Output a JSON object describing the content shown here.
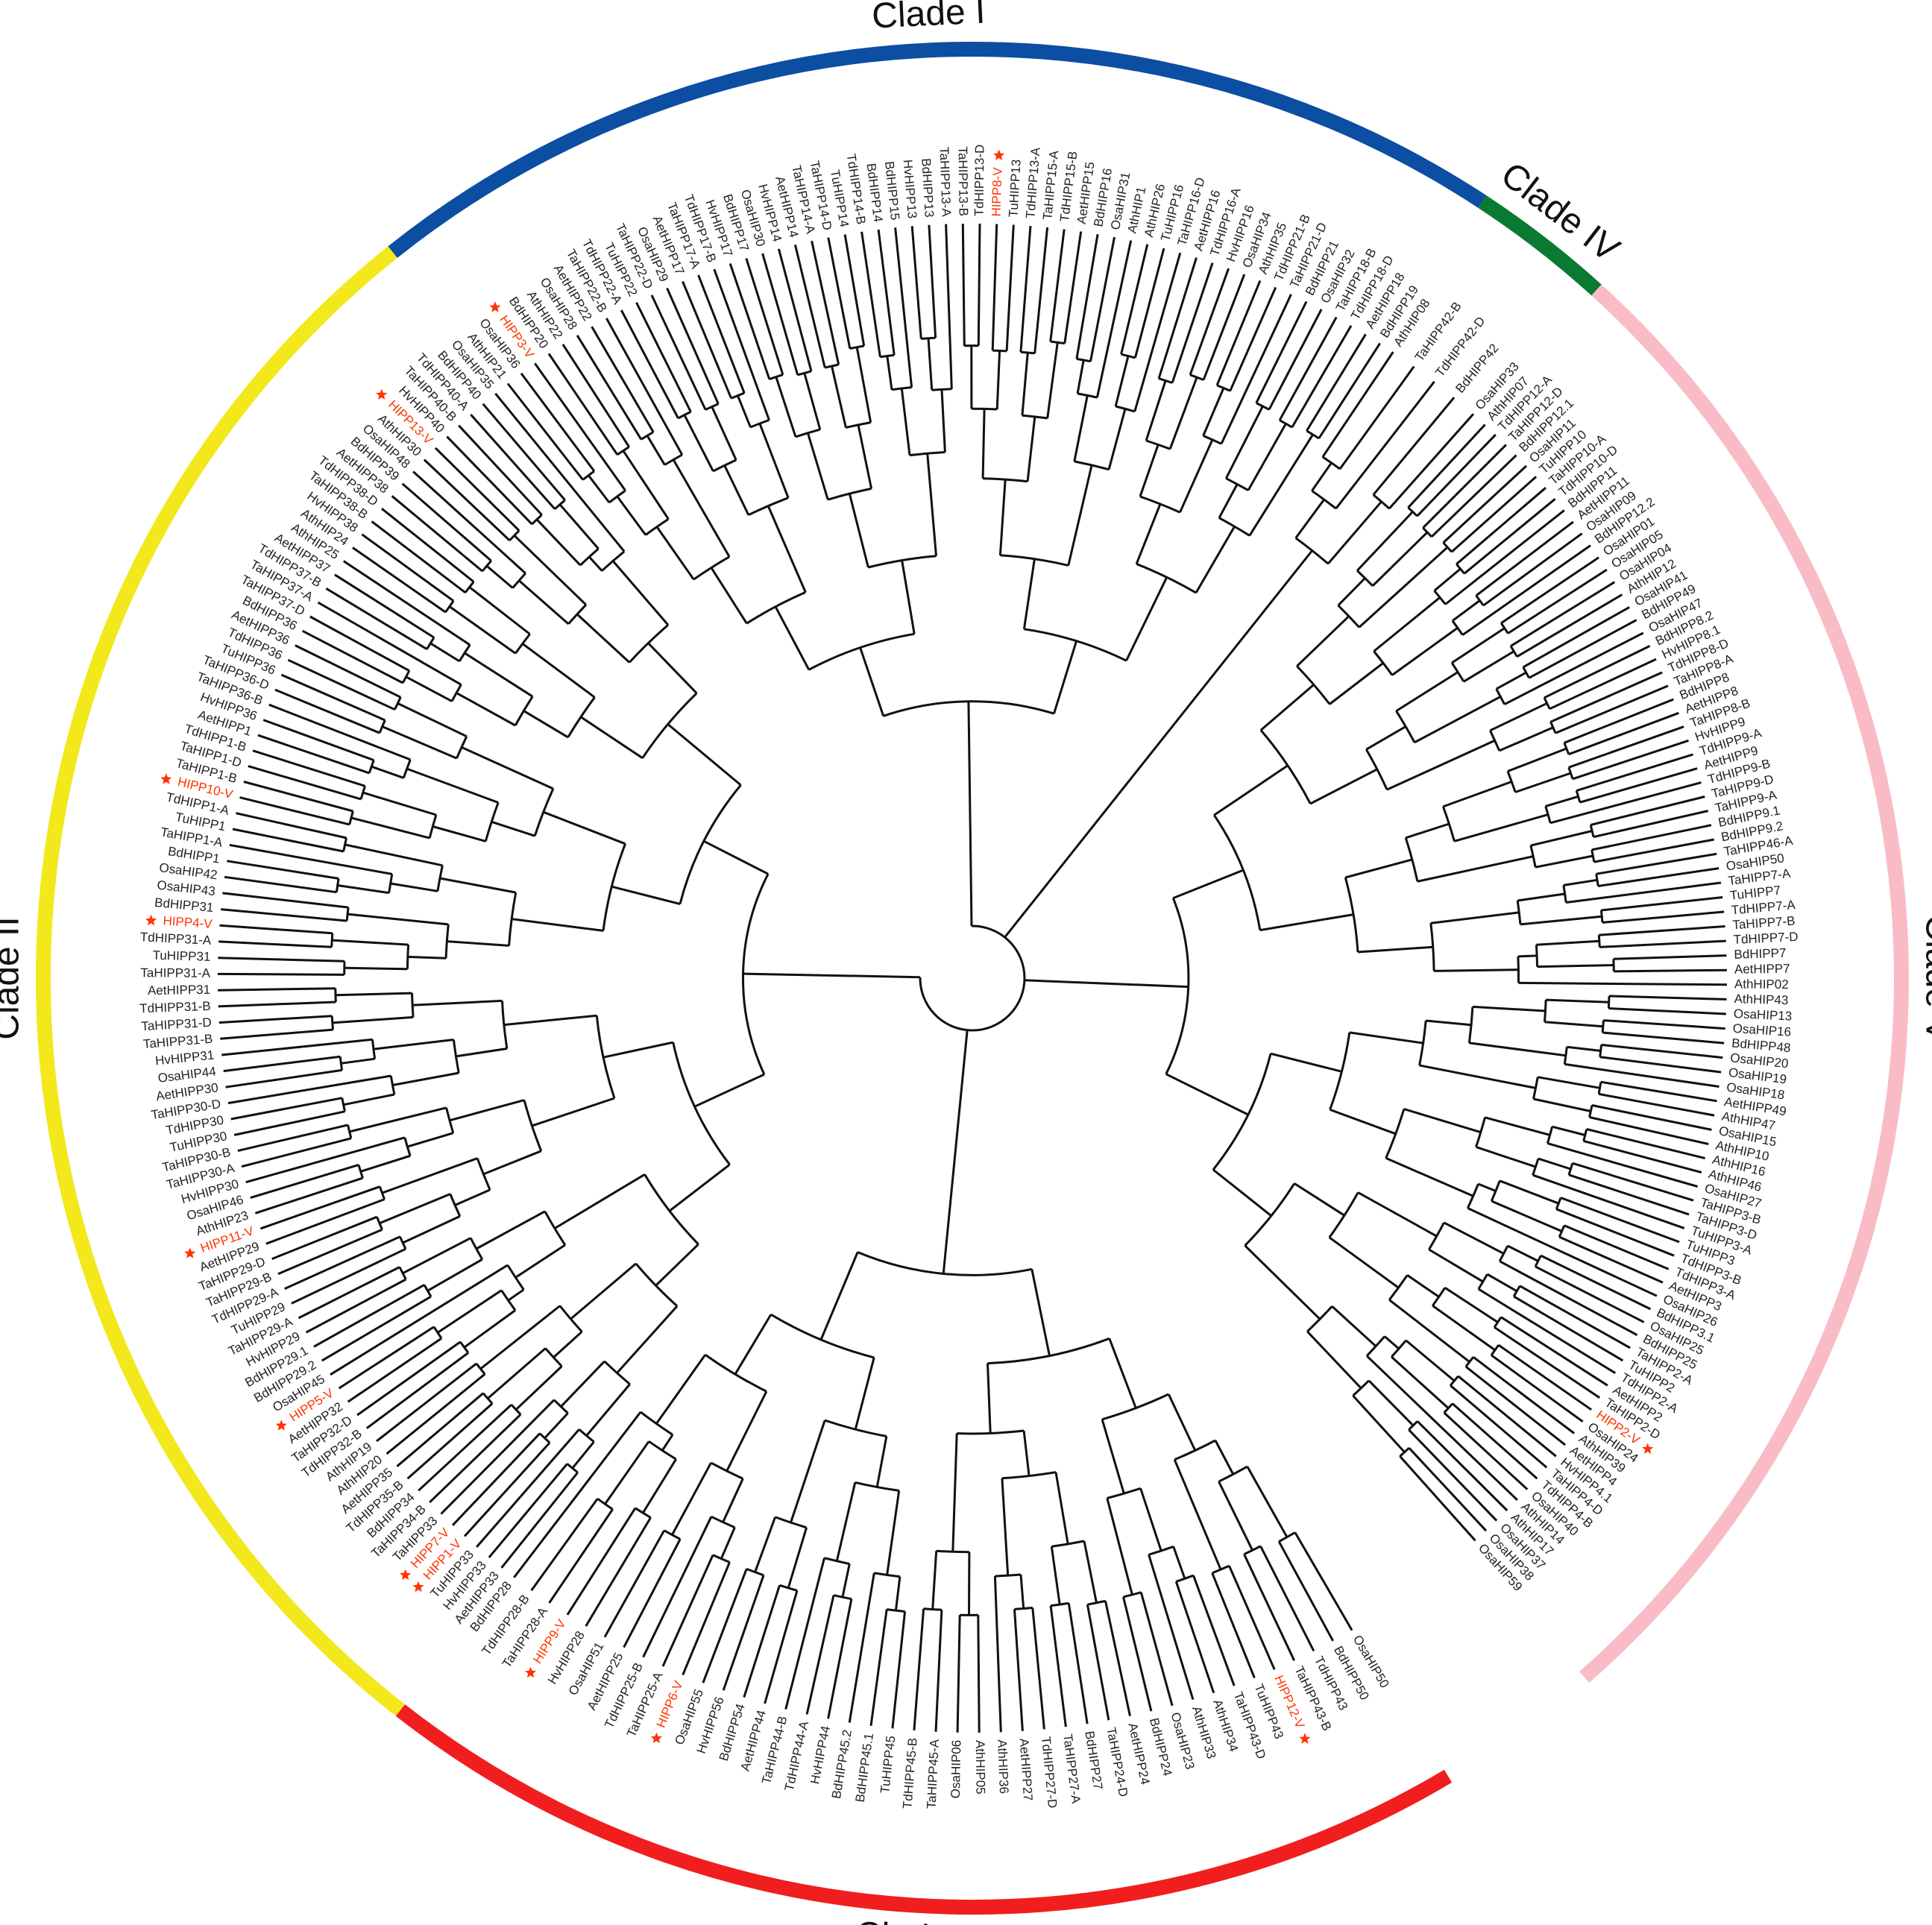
{
  "tree": {
    "clades": [
      {
        "name": "Clade I",
        "color": "#0b4ea2",
        "leaves": [
          "AthHIP21",
          "OsaHIP36",
          {
            "label": "HIPP3-V",
            "color": "#ff3300"
          },
          "BdHIPP20",
          "AthHIP22",
          "OsaHIP28",
          "AetHIPP22",
          "TaHIPP22-B",
          "TdHIPP22-A",
          "TuHIPP22",
          "TaHIPP22-D",
          "OsaHIP29",
          "AetHIPP17",
          "TaHIPP17-A",
          "TdHIPP17-B",
          "HvHIPP17",
          "BdHIPP17",
          "OsaHIP30",
          "HvHIPP14",
          "AetHIPP14",
          "TaHIPP14-A",
          "TaHIPP14-D",
          "TuHIPP14",
          "TdHIPP14-B",
          "BdHIPP14",
          "BdHIPP15",
          "HvHIPP13",
          "BdHIPP13",
          "TaHIPP13-A",
          "TaHIPP13-B",
          "TdHIPP13-D",
          {
            "label": "HIPP8-V",
            "color": "#ff3300"
          },
          "TuHIPP13",
          "TdHIPP13-A",
          "TaHIPP15-A",
          "TdHIPP15-B",
          "AetHIPP15",
          "BdHIPP16",
          "OsaHIP31",
          "AthHIP1",
          "AthHIP26",
          "TuHIPP16",
          "TaHIPP16-D",
          "AetHIPP16",
          "TdHIPP16-A",
          "HvHIPP16",
          "OsaHIP34",
          "AthHIP35",
          "TdHIPP21-B",
          "TaHIPP21-D",
          "BdHIPP21",
          "OsaHIP32",
          "TaHIPP18-B",
          "TdHIPP18-D",
          "AetHIPP18",
          "BdHIPP19"
        ]
      },
      {
        "name": "Clade IV",
        "color": "#0a7a32",
        "leaves": [
          "AthHIP08",
          "TaHIPP42-B",
          "TdHIPP42-D",
          "BdHIPP42",
          "OsaHIP33"
        ]
      },
      {
        "name": "Clade V",
        "color": "#f9bcc6",
        "leaves": [
          "AthHIP07",
          "TdHIPP12-A",
          "TaHIPP12-D",
          "BdHIPP12.1",
          "OsaHIP11",
          "TuHIPP10",
          "TaHIPP10-A",
          "TdHIPP10-D",
          "BdHIPP11",
          "AetHIPP11",
          "OsaHIP09",
          "BdHIPP12.2",
          "OsaHIP01",
          "OsaHIP05",
          "OsaHIP04",
          "AthHIP12",
          "OsaHIP41",
          "BdHIPP49",
          "OsaHIP47",
          "BdHIPP8.2",
          "HvHIPP8.1",
          "TdHIPP8-D",
          "TaHIPP8-A",
          "BdHIPP8",
          "AetHIPP8",
          "TaHIPP8-B",
          "HvHIPP9",
          "TdHIPP9-A",
          "AetHIPP9",
          "TdHIPP9-B",
          "TaHIPP9-D",
          "TaHIPP9-A",
          "BdHIPP9.1",
          "BdHIPP9.2",
          "TaHIPP46-A",
          "OsaHIP50",
          "TaHIPP7-A",
          "TuHIPP7",
          "TdHIPP7-A",
          "TaHIPP7-B",
          "TdHIPP7-D",
          "BdHIPP7",
          "AetHIPP7",
          "AthHIP02",
          "AthHIP43",
          "OsaHIP13",
          "OsaHIP16",
          "BdHIPP48",
          "OsaHIP20",
          "OsaHIP19",
          "OsaHIP18",
          "AetHIPP49",
          "AthHIP47",
          "OsaHIP15",
          "AthHIP10",
          "AthHIP16",
          "AthHIP46",
          "OsaHIP27",
          "TaHIPP3-B",
          "TaHIPP3-D",
          "TuHIPP3-A",
          "TuHIPP3",
          "TdHIPP3-B",
          "TdHIPP3-A",
          "AetHIPP3",
          "OsaHIP26",
          "BdHIPP3.1",
          "OsaHIP25",
          "BdHIPP25",
          "TaHIPP2-A",
          "TuHIPP2",
          "TdHIPP2-A",
          "AetHIPP2",
          "TaHIPP2-D",
          {
            "label": "HIPP2-V",
            "color": "#ff3300"
          },
          "OsaHIP24",
          "AthHIP39",
          "AetHIPP4",
          "HvHIPP4.1",
          "TaHIPP4-D",
          "TdHIPP4-B",
          "OsaHIP40",
          "AthHIP14",
          "AthHIP17",
          "OsaHIP37",
          "OsaHIP38",
          "OsaHIP59"
        ]
      },
      {
        "name": "Clade III",
        "color": "#f01e1e",
        "leaves": [
          "OsaHIP50",
          "BdHIPP50",
          "TdHIPP43",
          "TaHIPP43-B",
          {
            "label": "HIPP12-V",
            "color": "#ff3300"
          },
          "TuHIPP43",
          "TaHIPP43-D",
          "AthHIP34",
          "AthHIP33",
          "OsaHIP23",
          "BdHIPP24",
          "AetHIPP24",
          "TaHIPP24-D",
          "BdHIPP27",
          "TaHIPP27-A",
          "TdHIPP27-D",
          "AetHIPP27",
          "AthHIP36",
          "AthHIP05",
          "OsaHIP06",
          "TaHIPP45-A",
          "TdHIPP45-B",
          "TuHIPP45",
          "BdHIPP45.1",
          "BdHIPP45.2",
          "HvHIPP44",
          "TdHIPP44-A",
          "TaHIPP44-B",
          "AetHIPP44",
          "BdHIPP54",
          "HvHIPP56",
          "OsaHIP55",
          {
            "label": "HIPP6-V",
            "color": "#ff3300"
          },
          "TaHIPP25-A",
          "TdHIPP25-B",
          "AetHIPP25",
          "OsaHIP51",
          "HvHIPP28",
          {
            "label": "HIPP9-V",
            "color": "#ff3300"
          },
          "TaHIPP28-A",
          "TdHIPP28-B",
          "BdHIPP28"
        ]
      },
      {
        "name": "Clade II",
        "color": "#f2e81c",
        "leaves": [
          "AetHIPP33",
          "HvHIPP33",
          "TuHIPP33",
          {
            "label": "HIPP1-V",
            "color": "#ff3300"
          },
          {
            "label": "HIPP7-V",
            "color": "#ff3300"
          },
          "TaHIPP33",
          "TaHIPP34-B",
          "BdHIPP34",
          "TdHIPP35-B",
          "AetHIPP35",
          "AthHIP20",
          "AthHIP19",
          "TdHIPP32-B",
          "TaHIPP32-D",
          "AetHIPP32",
          {
            "label": "HIPP5-V",
            "color": "#ff3300"
          },
          "OsaHIP45",
          "BdHIPP29.2",
          "BdHIPP29.1",
          "HvHIPP29",
          "TaHIPP29-A",
          "TuHIPP29",
          "TdHIPP29-A",
          "TaHIPP29-B",
          "TaHIPP29-D",
          "AetHIPP29",
          {
            "label": "HIPP11-V",
            "color": "#ff3300"
          },
          "AthHIP23",
          "OsaHIP46",
          "HvHIPP30",
          "TaHIPP30-A",
          "TaHIPP30-B",
          "TuHIPP30",
          "TdHIPP30",
          "TaHIPP30-D",
          "AetHIPP30",
          "OsaHIP44",
          "HvHIPP31",
          "TaHIPP31-B",
          "TaHIPP31-D",
          "TdHIPP31-B",
          "AetHIPP31",
          "TaHIPP31-A",
          "TuHIPP31",
          "TdHIPP31-A",
          {
            "label": "HIPP4-V",
            "color": "#ff3300"
          },
          "BdHIPP31",
          "OsaHIP43",
          "OsaHIP42",
          "BdHIPP1",
          "TaHIPP1-A",
          "TuHIPP1",
          "TdHIPP1-A",
          {
            "label": "HIPP10-V",
            "color": "#ff3300"
          },
          "TaHIPP1-B",
          "TaHIPP1-D",
          "TdHIPP1-B",
          "AetHIPP1",
          "HvHIPP36",
          "TaHIPP36-B",
          "TaHIPP36-D",
          "TuHIPP36",
          "TdHIPP36",
          "AetHIPP36",
          "BdHIPP36",
          "TaHIPP37-D",
          "TaHIPP37-A",
          "TdHIPP37-B",
          "AetHIPP37",
          "AthHIP25",
          "AthHIP24",
          "HvHIPP38",
          "TaHIPP38-B",
          "TdHIPP38-D",
          "AetHIPP38",
          "BdHIPP39",
          "OsaHIP48",
          "AthHIP30",
          {
            "label": "HIPP13-V",
            "color": "#ff3300"
          },
          "HvHIPP40",
          "TaHIPP40-B",
          "TdHIPP40-A",
          "BdHIPP40",
          "OsaHIP35"
        ]
      }
    ]
  }
}
